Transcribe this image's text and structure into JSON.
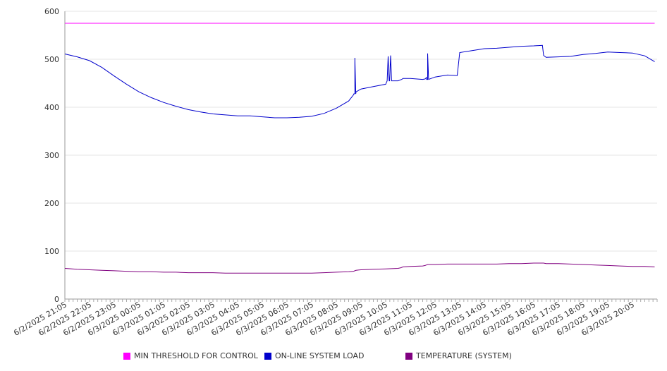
{
  "chart_data": {
    "type": "line",
    "ylim": [
      0,
      600
    ],
    "yticks": [
      0,
      100,
      200,
      300,
      400,
      500,
      600
    ],
    "xlabels": [
      "6/2/2025 21:05",
      "6/2/2025 22:05",
      "6/2/2025 23:05",
      "6/3/2025 00:05",
      "6/3/2025 01:05",
      "6/3/2025 02:05",
      "6/3/2025 03:05",
      "6/3/2025 04:05",
      "6/3/2025 05:05",
      "6/3/2025 06:05",
      "6/3/2025 07:05",
      "6/3/2025 08:05",
      "6/3/2025 09:05",
      "6/3/2025 10:05",
      "6/3/2025 11:05",
      "6/3/2025 12:05",
      "6/3/2025 13:05",
      "6/3/2025 14:05",
      "6/3/2025 15:05",
      "6/3/2025 16:05",
      "6/3/2025 17:05",
      "6/3/2025 18:05",
      "6/3/2025 19:05",
      "6/3/2025 20:05"
    ],
    "x_hours": [
      0,
      0.5,
      1,
      1.5,
      2,
      2.5,
      3,
      3.5,
      4,
      4.5,
      5,
      5.5,
      6,
      6.5,
      7,
      7.5,
      8,
      8.5,
      9,
      9.5,
      10,
      10.5,
      11,
      11.5,
      11.7,
      11.75,
      11.8,
      12,
      12.5,
      13,
      13.5,
      13.6,
      13.65,
      13.7,
      14,
      14.5,
      14.6,
      14.65,
      14.7,
      15,
      15.5,
      15.9,
      16,
      16.5,
      17,
      17.5,
      18,
      18.5,
      19,
      19.35,
      19.4,
      19.5,
      20,
      20.5,
      21,
      21.5,
      22,
      22.5,
      23,
      23.5,
      23.9
    ],
    "series": [
      {
        "name": "MIN THRESHOLD FOR CONTROL",
        "color": "#ff00ff",
        "values": [
          575,
          575,
          575,
          575,
          575,
          575,
          575,
          575,
          575,
          575,
          575,
          575,
          575,
          575,
          575,
          575,
          575,
          575,
          575,
          575,
          575,
          575,
          575,
          575,
          575,
          575,
          575,
          575,
          575,
          575,
          575,
          575,
          575,
          575,
          575,
          575,
          575,
          575,
          575,
          575,
          575,
          575,
          575,
          575,
          575,
          575,
          575,
          575,
          575,
          575,
          575,
          575,
          575,
          575,
          575,
          575,
          575,
          575,
          575,
          575,
          575
        ]
      },
      {
        "name": "ON-LINE SYSTEM LOAD",
        "color": "#0000cc",
        "values": [
          511,
          505,
          497,
          483,
          465,
          448,
          432,
          420,
          410,
          402,
          395,
          390,
          386,
          384,
          382,
          382,
          380,
          378,
          378,
          379,
          381,
          387,
          398,
          413,
          426,
          428,
          432,
          438,
          443,
          448,
          455,
          457,
          458,
          460,
          460,
          458,
          459,
          462,
          458,
          463,
          467,
          466,
          514,
          518,
          522,
          523,
          525,
          527,
          528,
          529,
          508,
          504,
          505,
          506,
          510,
          512,
          515,
          514,
          513,
          507,
          495
        ]
      },
      {
        "name": "TEMPERATURE (SYSTEM)",
        "color": "#800080",
        "values": [
          64,
          62,
          61,
          60,
          59,
          58,
          57,
          57,
          56,
          56,
          55,
          55,
          55,
          54,
          54,
          54,
          54,
          54,
          54,
          54,
          54,
          55,
          56,
          57,
          58,
          59,
          60,
          61,
          62,
          63,
          64,
          65,
          66,
          67,
          68,
          69,
          70,
          71,
          72,
          72,
          73,
          73,
          73,
          73,
          73,
          73,
          74,
          74,
          75,
          75,
          75,
          74,
          74,
          73,
          72,
          71,
          70,
          69,
          68,
          68,
          67
        ]
      }
    ],
    "spikes": [
      {
        "series": 1,
        "x_hours": 11.75,
        "value": 503
      },
      {
        "series": 1,
        "x_hours": 13.1,
        "value": 506
      },
      {
        "series": 1,
        "x_hours": 13.2,
        "value": 508
      },
      {
        "series": 1,
        "x_hours": 14.7,
        "value": 512
      }
    ],
    "grid": true,
    "legend_position": "bottom"
  }
}
